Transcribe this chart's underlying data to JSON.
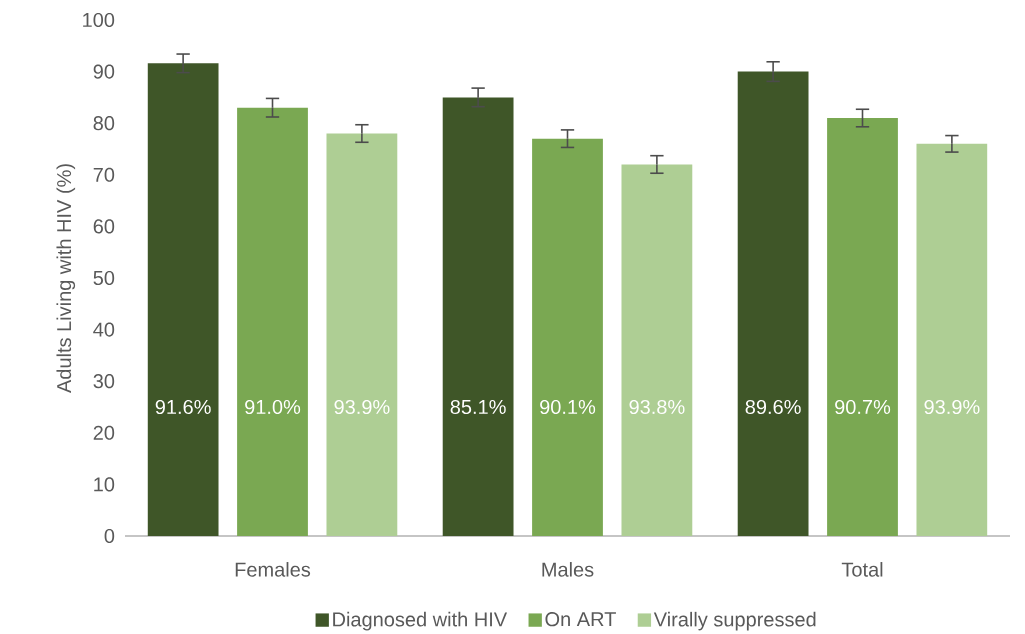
{
  "chart_data": {
    "type": "bar",
    "ylabel": "Adults Living with HIV (%)",
    "categories": [
      "Females",
      "Males",
      "Total"
    ],
    "series": [
      {
        "name": "Diagnosed with HIV",
        "color": "#3f5628",
        "values": [
          91.6,
          85,
          90
        ],
        "errors": [
          1.8,
          1.8,
          1.9
        ]
      },
      {
        "name": "On ART",
        "color": "#7aa852",
        "values": [
          83,
          77,
          81
        ],
        "errors": [
          1.8,
          1.7,
          1.7
        ]
      },
      {
        "name": "Virally suppressed",
        "color": "#aece94",
        "values": [
          78,
          72,
          76
        ],
        "errors": [
          1.7,
          1.7,
          1.6
        ]
      }
    ],
    "annotations": [
      "91.6%",
      "91.0%",
      "93.9%",
      "85.1%",
      "90.1%",
      "93.8%",
      "89.6%",
      "90.7%",
      "93.9%"
    ],
    "ylim": [
      0,
      100
    ],
    "yticks": [
      0,
      10,
      20,
      30,
      40,
      50,
      60,
      70,
      80,
      90,
      100
    ],
    "legend": "bottom"
  }
}
